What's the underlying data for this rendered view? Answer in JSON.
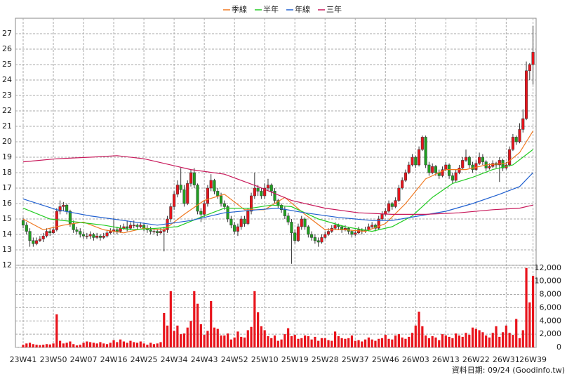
{
  "chart_data": {
    "type": "candlestick",
    "series": [
      {
        "name": "季線",
        "color": "#f07820",
        "x": [
          0,
          6,
          12,
          18,
          24,
          30,
          36,
          42,
          48,
          54,
          60,
          66,
          72,
          78,
          84,
          90,
          96,
          102,
          108,
          114,
          120,
          126,
          132,
          138,
          144,
          148,
          152
        ],
        "values": [
          15.0,
          14.3,
          14.6,
          14.8,
          14.3,
          14.1,
          14.4,
          14.3,
          15.3,
          16.2,
          16.6,
          15.6,
          15.6,
          16.4,
          15.3,
          14.3,
          14.3,
          14.2,
          14.7,
          16.0,
          17.6,
          18.2,
          18.2,
          18.5,
          18.6,
          19.3,
          20.7
        ]
      },
      {
        "name": "半年",
        "color": "#22cc22",
        "x": [
          0,
          8,
          16,
          24,
          32,
          40,
          46,
          54,
          60,
          68,
          74,
          80,
          88,
          96,
          104,
          110,
          116,
          122,
          128,
          134,
          140,
          146,
          152
        ],
        "values": [
          15.7,
          15.0,
          14.8,
          14.6,
          14.3,
          14.4,
          14.5,
          15.2,
          15.7,
          15.7,
          15.9,
          15.8,
          15.0,
          14.5,
          14.2,
          14.5,
          15.2,
          16.4,
          17.3,
          17.7,
          18.2,
          18.5,
          19.5
        ]
      },
      {
        "name": "年線",
        "color": "#2060d0",
        "x": [
          0,
          10,
          20,
          30,
          40,
          50,
          60,
          70,
          76,
          84,
          94,
          104,
          110,
          118,
          126,
          134,
          142,
          148,
          152
        ],
        "values": [
          16.3,
          15.6,
          15.2,
          14.9,
          14.6,
          14.9,
          15.4,
          15.6,
          15.7,
          15.4,
          15.1,
          14.9,
          14.9,
          15.2,
          15.5,
          16.0,
          16.6,
          17.1,
          18.0
        ]
      },
      {
        "name": "三年",
        "color": "#c8185a",
        "x": [
          0,
          10,
          20,
          28,
          36,
          42,
          50,
          60,
          70,
          80,
          90,
          100,
          110,
          120,
          130,
          140,
          148,
          152
        ],
        "values": [
          18.7,
          18.9,
          19.0,
          19.1,
          18.9,
          18.6,
          18.2,
          17.9,
          17.1,
          16.2,
          15.7,
          15.4,
          15.3,
          15.3,
          15.4,
          15.6,
          15.7,
          15.9
        ]
      }
    ],
    "categories": [
      "23W41",
      null,
      null,
      null,
      null,
      null,
      null,
      null,
      null,
      "23W50",
      null,
      null,
      null,
      null,
      null,
      null,
      null,
      null,
      "24W07",
      null,
      null,
      null,
      null,
      null,
      null,
      null,
      null,
      "24W16",
      null,
      null,
      null,
      null,
      null,
      null,
      null,
      null,
      "24W25",
      null,
      null,
      null,
      null,
      null,
      null,
      null,
      null,
      "24W34",
      null,
      null,
      null,
      null,
      null,
      null,
      null,
      null,
      "24W43",
      null,
      null,
      null,
      null,
      null,
      null,
      null,
      null,
      "24W52",
      null,
      null,
      null,
      null,
      null,
      null,
      null,
      null,
      "25W10",
      null,
      null,
      null,
      null,
      null,
      null,
      null,
      null,
      "25W19",
      null,
      null,
      null,
      null,
      null,
      null,
      null,
      null,
      "25W28",
      null,
      null,
      null,
      null,
      null,
      null,
      null,
      null,
      "25W37",
      null,
      null,
      null,
      null,
      null,
      null,
      null,
      null,
      "25W46",
      null,
      null,
      null,
      null,
      null,
      null,
      null,
      null,
      "26W03",
      null,
      null,
      null,
      null,
      null,
      null,
      null,
      null,
      "26W13",
      null,
      null,
      null,
      null,
      null,
      null,
      null,
      null,
      "26W22",
      null,
      null,
      null,
      null,
      null,
      null,
      null,
      null,
      "26W31",
      null,
      null,
      null,
      null,
      null,
      null,
      null,
      "26W39"
    ],
    "ohlc": [
      [
        14.9,
        15.1,
        14.4,
        14.6
      ],
      [
        14.6,
        14.8,
        14.0,
        14.2
      ],
      [
        14.2,
        14.4,
        13.2,
        13.6
      ],
      [
        13.6,
        13.8,
        13.2,
        13.4
      ],
      [
        13.4,
        13.8,
        13.3,
        13.6
      ],
      [
        13.6,
        13.9,
        13.5,
        13.7
      ],
      [
        13.7,
        14.1,
        13.5,
        13.9
      ],
      [
        13.9,
        14.4,
        13.8,
        14.2
      ],
      [
        14.2,
        14.4,
        13.9,
        14.1
      ],
      [
        14.1,
        14.5,
        14.0,
        14.3
      ],
      [
        14.3,
        15.7,
        14.2,
        15.5
      ],
      [
        15.5,
        16.2,
        15.3,
        15.8
      ],
      [
        15.8,
        16.1,
        15.5,
        15.9
      ],
      [
        15.9,
        16.0,
        15.3,
        15.5
      ],
      [
        15.5,
        15.6,
        14.5,
        14.7
      ],
      [
        14.7,
        14.9,
        14.1,
        14.3
      ],
      [
        14.3,
        14.5,
        14.0,
        14.2
      ],
      [
        14.2,
        14.4,
        13.8,
        14.0
      ],
      [
        14.0,
        14.2,
        13.7,
        13.9
      ],
      [
        13.9,
        14.1,
        13.7,
        13.9
      ],
      [
        13.9,
        14.2,
        13.7,
        14.0
      ],
      [
        14.0,
        14.1,
        13.6,
        13.8
      ],
      [
        13.8,
        14.1,
        13.7,
        13.9
      ],
      [
        13.9,
        14.0,
        13.6,
        13.8
      ],
      [
        13.8,
        14.1,
        13.7,
        13.9
      ],
      [
        13.9,
        14.3,
        13.8,
        14.1
      ],
      [
        14.1,
        14.4,
        14.0,
        14.2
      ],
      [
        14.2,
        15.1,
        14.0,
        14.3
      ],
      [
        14.3,
        14.5,
        14.0,
        14.2
      ],
      [
        14.2,
        14.6,
        14.1,
        14.4
      ],
      [
        14.4,
        14.7,
        14.3,
        14.5
      ],
      [
        14.5,
        14.9,
        14.2,
        14.4
      ],
      [
        14.4,
        14.8,
        14.3,
        14.6
      ],
      [
        14.6,
        14.9,
        14.4,
        14.6
      ],
      [
        14.6,
        14.7,
        14.3,
        14.5
      ],
      [
        14.5,
        14.8,
        14.4,
        14.6
      ],
      [
        14.6,
        14.7,
        14.2,
        14.4
      ],
      [
        14.4,
        14.6,
        14.1,
        14.3
      ],
      [
        14.3,
        14.5,
        14.0,
        14.2
      ],
      [
        14.2,
        14.4,
        14.0,
        14.2
      ],
      [
        14.2,
        14.3,
        13.9,
        14.1
      ],
      [
        14.1,
        14.4,
        14.0,
        14.2
      ],
      [
        14.2,
        14.5,
        12.9,
        14.3
      ],
      [
        14.3,
        15.2,
        14.1,
        15.0
      ],
      [
        15.0,
        16.0,
        14.8,
        15.8
      ],
      [
        15.8,
        16.8,
        15.6,
        16.6
      ],
      [
        16.6,
        17.5,
        16.4,
        17.2
      ],
      [
        17.2,
        18.3,
        16.7,
        16.9
      ],
      [
        16.9,
        17.2,
        15.8,
        16.0
      ],
      [
        16.0,
        17.5,
        15.9,
        17.3
      ],
      [
        17.3,
        18.2,
        17.1,
        18.0
      ],
      [
        18.0,
        18.3,
        17.0,
        17.2
      ],
      [
        17.2,
        17.3,
        15.3,
        15.5
      ],
      [
        15.5,
        15.7,
        14.8,
        15.3
      ],
      [
        15.3,
        16.2,
        15.1,
        16.0
      ],
      [
        16.0,
        17.2,
        15.8,
        17.0
      ],
      [
        17.0,
        17.9,
        16.8,
        17.5
      ],
      [
        17.5,
        17.6,
        16.6,
        16.8
      ],
      [
        16.8,
        17.0,
        16.3,
        16.5
      ],
      [
        16.5,
        16.7,
        15.8,
        16.0
      ],
      [
        16.0,
        16.2,
        15.6,
        15.8
      ],
      [
        15.8,
        15.9,
        14.8,
        15.0
      ],
      [
        15.0,
        15.2,
        14.4,
        14.6
      ],
      [
        14.6,
        14.8,
        14.0,
        14.2
      ],
      [
        14.2,
        14.7,
        13.9,
        14.5
      ],
      [
        14.5,
        15.2,
        14.3,
        15.0
      ],
      [
        15.0,
        15.2,
        14.5,
        14.7
      ],
      [
        14.7,
        15.7,
        14.6,
        15.5
      ],
      [
        15.5,
        16.7,
        15.3,
        16.5
      ],
      [
        16.5,
        18.0,
        16.3,
        17.0
      ],
      [
        17.0,
        17.2,
        16.5,
        16.8
      ],
      [
        16.8,
        17.0,
        16.3,
        16.5
      ],
      [
        16.5,
        17.3,
        16.3,
        17.0
      ],
      [
        17.0,
        17.6,
        16.8,
        17.2
      ],
      [
        17.2,
        17.3,
        16.5,
        16.8
      ],
      [
        16.8,
        17.0,
        16.0,
        16.2
      ],
      [
        16.2,
        16.3,
        15.7,
        15.9
      ],
      [
        15.9,
        16.0,
        15.4,
        15.6
      ],
      [
        15.6,
        15.8,
        15.0,
        15.2
      ],
      [
        15.2,
        15.4,
        14.6,
        14.8
      ],
      [
        14.8,
        15.0,
        12.1,
        14.1
      ],
      [
        14.1,
        14.3,
        13.4,
        13.6
      ],
      [
        13.6,
        14.7,
        13.5,
        14.5
      ],
      [
        14.5,
        15.2,
        14.3,
        15.0
      ],
      [
        15.0,
        15.1,
        14.3,
        14.5
      ],
      [
        14.5,
        14.6,
        13.8,
        14.0
      ],
      [
        14.0,
        14.2,
        13.6,
        13.8
      ],
      [
        13.8,
        14.0,
        13.4,
        13.6
      ],
      [
        13.6,
        13.8,
        13.2,
        13.5
      ],
      [
        13.5,
        14.0,
        13.4,
        13.8
      ],
      [
        13.8,
        14.2,
        13.7,
        14.0
      ],
      [
        14.0,
        14.4,
        13.9,
        14.2
      ],
      [
        14.2,
        14.6,
        14.1,
        14.4
      ],
      [
        14.4,
        14.8,
        14.3,
        14.6
      ],
      [
        14.6,
        14.7,
        14.3,
        14.5
      ],
      [
        14.5,
        14.6,
        14.1,
        14.3
      ],
      [
        14.3,
        14.6,
        14.2,
        14.4
      ],
      [
        14.4,
        14.5,
        14.0,
        14.2
      ],
      [
        14.2,
        14.3,
        13.8,
        14.0
      ],
      [
        14.0,
        14.3,
        13.9,
        14.1
      ],
      [
        14.1,
        14.5,
        14.0,
        14.3
      ],
      [
        14.3,
        14.4,
        14.0,
        14.2
      ],
      [
        14.2,
        14.5,
        14.1,
        14.3
      ],
      [
        14.3,
        14.7,
        14.2,
        14.5
      ],
      [
        14.5,
        14.8,
        14.4,
        14.6
      ],
      [
        14.6,
        14.7,
        14.2,
        14.4
      ],
      [
        14.4,
        15.2,
        14.3,
        15.0
      ],
      [
        15.0,
        15.5,
        14.9,
        15.3
      ],
      [
        15.3,
        15.7,
        15.2,
        15.5
      ],
      [
        15.5,
        16.2,
        15.4,
        16.0
      ],
      [
        16.0,
        16.1,
        15.6,
        15.8
      ],
      [
        15.8,
        16.4,
        15.7,
        16.2
      ],
      [
        16.2,
        17.2,
        16.1,
        17.0
      ],
      [
        17.0,
        17.7,
        16.9,
        17.5
      ],
      [
        17.5,
        18.2,
        17.4,
        18.0
      ],
      [
        18.0,
        18.7,
        17.9,
        18.5
      ],
      [
        18.5,
        19.2,
        18.4,
        19.0
      ],
      [
        19.0,
        19.1,
        18.3,
        18.5
      ],
      [
        18.5,
        19.7,
        18.4,
        19.5
      ],
      [
        19.5,
        20.4,
        19.4,
        20.3
      ],
      [
        20.3,
        20.4,
        18.3,
        18.5
      ],
      [
        18.5,
        18.7,
        17.8,
        18.0
      ],
      [
        18.0,
        18.6,
        17.9,
        18.4
      ],
      [
        18.4,
        18.5,
        17.8,
        18.0
      ],
      [
        18.0,
        18.2,
        17.6,
        17.8
      ],
      [
        17.8,
        18.4,
        17.7,
        18.2
      ],
      [
        18.2,
        18.7,
        18.1,
        18.5
      ],
      [
        18.5,
        18.6,
        17.6,
        17.8
      ],
      [
        17.8,
        18.0,
        17.3,
        17.5
      ],
      [
        17.5,
        18.2,
        17.4,
        18.0
      ],
      [
        18.0,
        18.5,
        17.9,
        18.3
      ],
      [
        18.3,
        19.0,
        18.2,
        18.8
      ],
      [
        18.8,
        19.5,
        18.7,
        19.0
      ],
      [
        19.0,
        19.1,
        18.3,
        18.5
      ],
      [
        18.5,
        18.7,
        18.0,
        18.2
      ],
      [
        18.2,
        18.8,
        18.1,
        18.6
      ],
      [
        18.6,
        19.3,
        18.5,
        19.0
      ],
      [
        19.0,
        19.2,
        18.5,
        18.7
      ],
      [
        18.7,
        18.8,
        18.1,
        18.3
      ],
      [
        18.3,
        18.6,
        18.2,
        18.4
      ],
      [
        18.4,
        18.8,
        18.3,
        18.6
      ],
      [
        18.6,
        18.7,
        18.3,
        18.5
      ],
      [
        18.5,
        19.0,
        17.4,
        18.8
      ],
      [
        18.8,
        18.9,
        18.1,
        18.3
      ],
      [
        18.3,
        18.7,
        18.2,
        18.5
      ],
      [
        18.5,
        19.7,
        18.4,
        19.5
      ],
      [
        19.5,
        20.5,
        19.4,
        20.3
      ],
      [
        20.3,
        20.4,
        19.8,
        20.0
      ],
      [
        20.0,
        21.2,
        19.9,
        20.8
      ],
      [
        20.8,
        22.1,
        20.6,
        21.5
      ],
      [
        21.5,
        25.2,
        21.4,
        24.6
      ],
      [
        24.6,
        25.1,
        24.0,
        25.0
      ],
      [
        25.0,
        27.5,
        23.7,
        25.8
      ]
    ],
    "up_color": "#e8141c",
    "down_color": "#20a020",
    "ylim": [
      12,
      28
    ],
    "yticks": [
      12,
      13,
      14,
      15,
      16,
      17,
      18,
      19,
      20,
      21,
      22,
      23,
      24,
      25,
      26,
      27
    ],
    "grid": true,
    "volume": {
      "color": "#e8141c",
      "values": [
        400,
        600,
        700,
        500,
        400,
        350,
        400,
        500,
        450,
        600,
        5000,
        1000,
        600,
        700,
        900,
        500,
        300,
        400,
        700,
        900,
        800,
        700,
        600,
        800,
        600,
        500,
        700,
        1100,
        800,
        1200,
        900,
        700,
        1000,
        800,
        700,
        900,
        600,
        400,
        700,
        500,
        600,
        800,
        5200,
        3300,
        8500,
        2500,
        3300,
        2000,
        2100,
        3000,
        4000,
        8500,
        6600,
        3500,
        1900,
        2500,
        7000,
        3000,
        2800,
        1800,
        1800,
        2100,
        1200,
        1500,
        2400,
        1600,
        1500,
        2600,
        3100,
        8500,
        5300,
        3200,
        2600,
        1700,
        1400,
        1800,
        1000,
        1200,
        2000,
        2900,
        1700,
        1900,
        1300,
        1400,
        1800,
        1700,
        1200,
        1600,
        1000,
        1400,
        1400,
        1100,
        1000,
        2400,
        1700,
        1400,
        1300,
        1400,
        1800,
        1000,
        1100,
        900,
        1200,
        1500,
        1200,
        1000,
        1300,
        1400,
        1900,
        1300,
        1200,
        1800,
        2000,
        1500,
        1300,
        1600,
        2200,
        3300,
        5400,
        3200,
        1800,
        1400,
        1700,
        1500,
        1100,
        2000,
        1800,
        1600,
        1400,
        2100,
        1800,
        1600,
        2200,
        1900,
        3000,
        2800,
        2600,
        2300,
        1800,
        1500,
        2200,
        3200,
        1600,
        2300,
        3300,
        2200,
        1900,
        4300,
        1400,
        2600,
        12000,
        6800,
        10800
      ],
      "ylim": [
        0,
        12400
      ],
      "yticks": [
        0,
        {
          "value": 2000,
          "label": "2,000"
        },
        {
          "value": 4000,
          "label": "4,000"
        },
        {
          "value": 6000,
          "label": "6,000"
        },
        {
          "value": 8000,
          "label": "8,000"
        },
        {
          "value": 10000,
          "label": "10,000"
        },
        {
          "value": 12000,
          "label": "12,000"
        }
      ]
    },
    "footer": "資料日期: 09/24 (Goodinfo.tw)"
  }
}
